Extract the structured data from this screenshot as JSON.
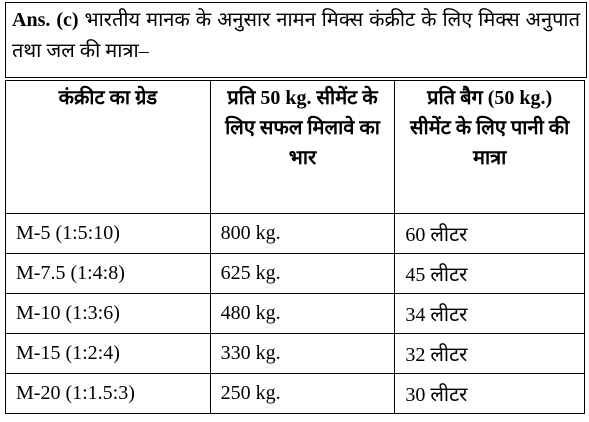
{
  "answer": {
    "label": "Ans. (c)",
    "text": "भारतीय मानक के अनुसार नामन मिक्स कंक्रीट के लिए मिक्स अनुपात तथा जल की मात्रा–"
  },
  "table": {
    "header": [
      "कंक्रीट का ग्रेड",
      "प्रति 50 kg. सीमेंट के लिए सफल मिलावे का भार",
      "प्रति बैग (50 kg.) सीमेंट के लिए पानी की मात्रा"
    ],
    "rows": [
      [
        "M-5 (1:5:10)",
        "800 kg.",
        "60 लीटर"
      ],
      [
        "M-7.5 (1:4:8)",
        "625 kg.",
        "45 लीटर"
      ],
      [
        "M-10 (1:3:6)",
        "480 kg.",
        "34 लीटर"
      ],
      [
        "M-15 (1:2:4)",
        "330 kg.",
        "32 लीटर"
      ],
      [
        "M-20 (1:1.5:3)",
        "250 kg.",
        "30 लीटर"
      ]
    ]
  }
}
